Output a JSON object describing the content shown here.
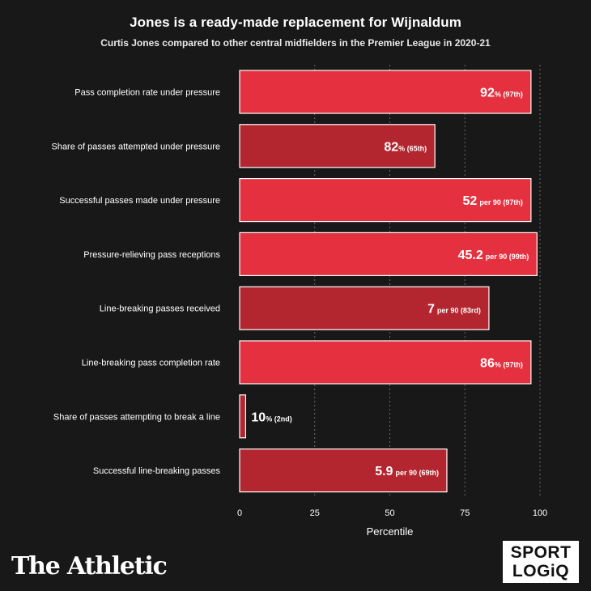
{
  "header": {
    "title": "Jones is a ready-made replacement for Wijnaldum",
    "subtitle": "Curtis Jones compared to other central midfielders in the Premier League in 2020-21"
  },
  "branding": {
    "publisher": "The Athletic",
    "partner_line1": "SPORT",
    "partner_line2": "LOGiQ"
  },
  "colors": {
    "background": "#181818",
    "bar_high": "#e5313f",
    "bar_low": "#b3262f",
    "bar_border": "#ffffff",
    "grid": "#6a6a6a"
  },
  "chart_data": {
    "type": "bar",
    "orientation": "horizontal",
    "xlabel": "Percentile",
    "xlim": [
      0,
      100
    ],
    "xticks": [
      0,
      25,
      50,
      75,
      100
    ],
    "grid": "vertical dashed",
    "categories": [
      "Pass completion rate under pressure",
      "Share of passes attempted under pressure",
      "Successful passes made under pressure",
      "Pressure-relieving pass receptions",
      "Line-breaking passes received",
      "Line-breaking pass completion rate",
      "Share of passes attempting to break a line",
      "Successful line-breaking passes"
    ],
    "values": [
      97,
      65,
      97,
      99,
      83,
      97,
      2,
      69
    ],
    "labels": [
      {
        "value": "92",
        "unit": "% (97th)"
      },
      {
        "value": "82",
        "unit": "% (65th)"
      },
      {
        "value": "52",
        "unit": "per 90 (97th)"
      },
      {
        "value": "45.2",
        "unit": "per 90 (99th)"
      },
      {
        "value": "7",
        "unit": "per 90 (83rd)"
      },
      {
        "value": "86",
        "unit": "% (97th)"
      },
      {
        "value": "10",
        "unit": "% (2nd)"
      },
      {
        "value": "5.9",
        "unit": "per 90 (69th)"
      }
    ]
  }
}
